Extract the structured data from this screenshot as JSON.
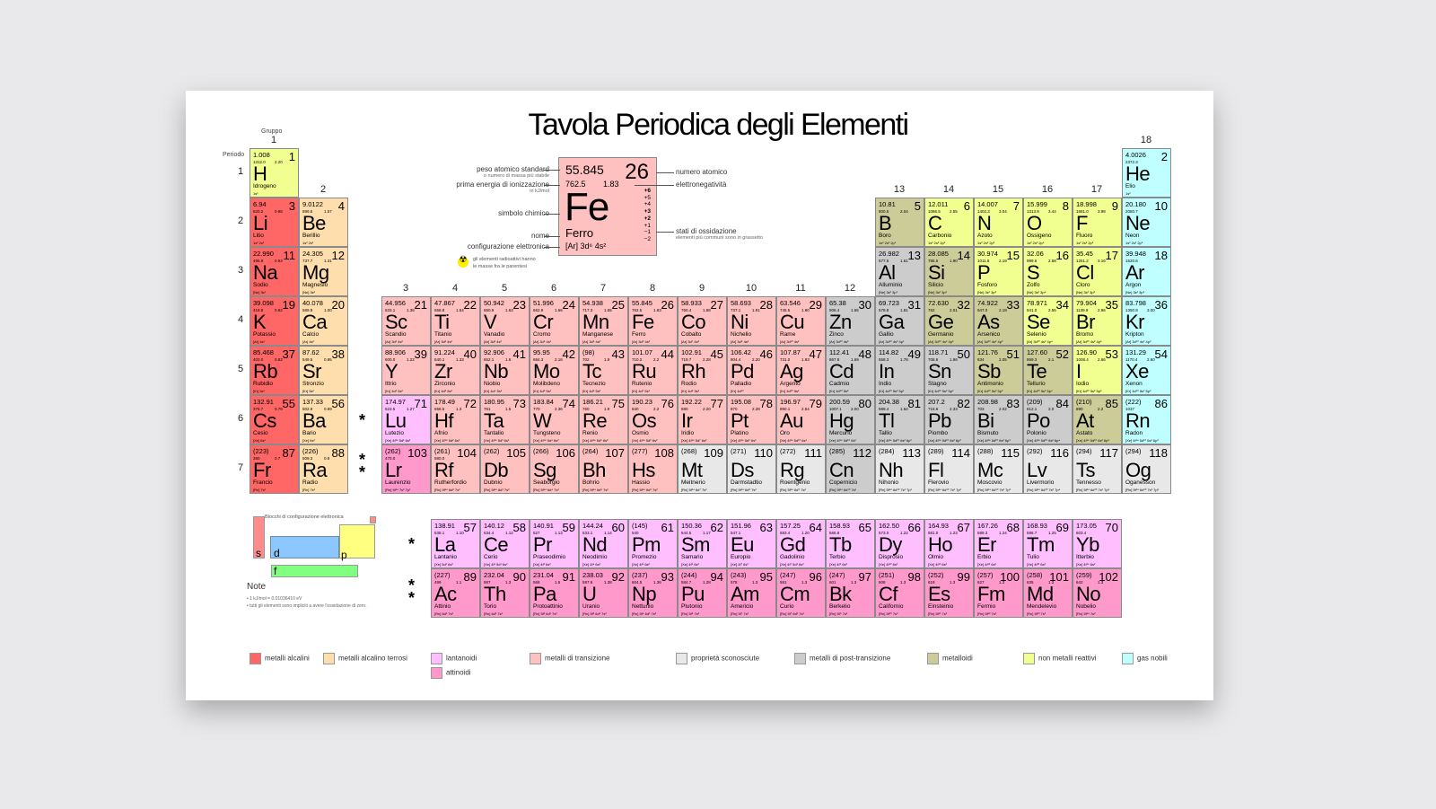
{
  "title": "Tavola Periodica degli Elementi",
  "axis": {
    "group_label": "Gruppo",
    "period_label": "Periodo",
    "groups": [
      "1",
      "2",
      "3",
      "4",
      "5",
      "6",
      "7",
      "8",
      "9",
      "10",
      "11",
      "12",
      "13",
      "14",
      "15",
      "16",
      "17",
      "18"
    ],
    "periods": [
      "1",
      "2",
      "3",
      "4",
      "5",
      "6",
      "7"
    ]
  },
  "key": {
    "mass": "55.845",
    "number": "26",
    "ie": "762.5",
    "en": "1.83",
    "symbol": "Fe",
    "name": "Ferro",
    "config": "[Ar] 3d⁶ 4s²",
    "oxidation": [
      "+6",
      "+5",
      "+4",
      "+3",
      "+2",
      "+1",
      "−1",
      "−2"
    ],
    "labels": {
      "mass": "peso atomico standard",
      "mass_sub": "o numero di massa più stabile",
      "ie": "prima energia di ionizzazione",
      "ie_sub": "in kJ/mol",
      "symbol": "simbolo chimico",
      "name": "nome",
      "config": "configurazione elettronica",
      "number": "numero atomico",
      "en": "elettronegatività",
      "ox": "stati di ossidazione",
      "ox_sub": "elementi più communi sono in grassetto"
    },
    "radio_note_1": "gli elementi radioattivi hanno",
    "radio_note_2": "le masse fra le parentesi"
  },
  "blocks": {
    "title": "Blocchi di configurazione elettronica",
    "s": "s",
    "d": "d",
    "p": "p",
    "f": "f",
    "colors": {
      "s": "#ff8c8c",
      "d": "#8cc8ff",
      "p": "#ffff80",
      "f": "#80ff80"
    }
  },
  "notes": {
    "title": "Note",
    "items": [
      "• 1 kJ/mol = 0.01036410 eV",
      "• tutti gli elementi sono impliciti a avere l'ossidazione di zero."
    ]
  },
  "stars": {
    "one": "*",
    "two": "* *"
  },
  "categories": {
    "alk": {
      "label": "metalli alcalini",
      "color": "#ff6666"
    },
    "ae": {
      "label": "metalli alcalino terrosi",
      "color": "#ffdead"
    },
    "lan": {
      "label": "lantanoidi",
      "color": "#ffbfff"
    },
    "act": {
      "label": "attinoidi",
      "color": "#ff99cc"
    },
    "tm": {
      "label": "metalli di transizione",
      "color": "#ffc0c0"
    },
    "unk": {
      "label": "proprietà sconosciute",
      "color": "#e8e8e8"
    },
    "pt": {
      "label": "metalli di post-transizione",
      "color": "#cccccc"
    },
    "met": {
      "label": "metalloidi",
      "color": "#cccc99"
    },
    "nm": {
      "label": "non metalli reattivi",
      "color": "#f0ff8f"
    },
    "ng": {
      "label": "gas nobili",
      "color": "#c0ffff"
    }
  },
  "elements": [
    [
      1,
      "H",
      "Idrogeno",
      "1.008",
      "1312.0",
      "2.20",
      "1s¹",
      "nm"
    ],
    [
      2,
      "He",
      "Elio",
      "4.0026",
      "2372.3",
      "",
      "1s²",
      "ng"
    ],
    [
      3,
      "Li",
      "Litio",
      "6.94",
      "520.2",
      "0.98",
      "1s² 2s¹",
      "alk"
    ],
    [
      4,
      "Be",
      "Berillio",
      "9.0122",
      "899.5",
      "1.57",
      "1s² 2s²",
      "ae"
    ],
    [
      5,
      "B",
      "Boro",
      "10.81",
      "800.6",
      "2.04",
      "1s² 2s² 2p¹",
      "met"
    ],
    [
      6,
      "C",
      "Carbonio",
      "12.011",
      "1086.5",
      "2.55",
      "1s² 2s² 2p²",
      "nm"
    ],
    [
      7,
      "N",
      "Azoto",
      "14.007",
      "1402.3",
      "3.04",
      "1s² 2s² 2p³",
      "nm"
    ],
    [
      8,
      "O",
      "Ossigeno",
      "15.999",
      "1313.9",
      "3.44",
      "1s² 2s² 2p⁴",
      "nm"
    ],
    [
      9,
      "F",
      "Fluoro",
      "18.998",
      "1681.0",
      "3.98",
      "1s² 2s² 2p⁵",
      "nm"
    ],
    [
      10,
      "Ne",
      "Neon",
      "20.180",
      "2080.7",
      "",
      "1s² 2s² 2p⁶",
      "ng"
    ],
    [
      11,
      "Na",
      "Sodio",
      "22.990",
      "495.8",
      "0.93",
      "[Ne] 3s¹",
      "alk"
    ],
    [
      12,
      "Mg",
      "Magnesio",
      "24.305",
      "737.7",
      "1.31",
      "[Ne] 3s²",
      "ae"
    ],
    [
      13,
      "Al",
      "Alluminio",
      "26.982",
      "577.5",
      "1.61",
      "[Ne] 3s² 3p¹",
      "pt"
    ],
    [
      14,
      "Si",
      "Silicio",
      "28.085",
      "786.5",
      "1.90",
      "[Ne] 3s² 3p²",
      "met"
    ],
    [
      15,
      "P",
      "Fosforo",
      "30.974",
      "1011.8",
      "2.19",
      "[Ne] 3s² 3p³",
      "nm"
    ],
    [
      16,
      "S",
      "Zolfo",
      "32.06",
      "999.6",
      "2.58",
      "[Ne] 3s² 3p⁴",
      "nm"
    ],
    [
      17,
      "Cl",
      "Cloro",
      "35.45",
      "1251.2",
      "3.16",
      "[Ne] 3s² 3p⁵",
      "nm"
    ],
    [
      18,
      "Ar",
      "Argon",
      "39.948",
      "1520.6",
      "",
      "[Ne] 3s² 3p⁶",
      "ng"
    ],
    [
      19,
      "K",
      "Potassio",
      "39.098",
      "418.8",
      "0.82",
      "[Ar] 4s¹",
      "alk"
    ],
    [
      20,
      "Ca",
      "Calcio",
      "40.078",
      "589.8",
      "1.00",
      "[Ar] 4s²",
      "ae"
    ],
    [
      21,
      "Sc",
      "Scandio",
      "44.956",
      "633.1",
      "1.36",
      "[Ar] 3d¹ 4s²",
      "tm"
    ],
    [
      22,
      "Ti",
      "Titanio",
      "47.867",
      "658.8",
      "1.54",
      "[Ar] 3d² 4s²",
      "tm"
    ],
    [
      23,
      "V",
      "Vanadio",
      "50.942",
      "650.9",
      "1.63",
      "[Ar] 3d³ 4s²",
      "tm"
    ],
    [
      24,
      "Cr",
      "Cromo",
      "51.996",
      "652.9",
      "1.66",
      "[Ar] 3d⁵ 4s¹",
      "tm"
    ],
    [
      25,
      "Mn",
      "Manganese",
      "54.938",
      "717.3",
      "1.55",
      "[Ar] 3d⁵ 4s²",
      "tm"
    ],
    [
      26,
      "Fe",
      "Ferro",
      "55.845",
      "762.5",
      "1.83",
      "[Ar] 3d⁶ 4s²",
      "tm"
    ],
    [
      27,
      "Co",
      "Cobalto",
      "58.933",
      "760.4",
      "1.88",
      "[Ar] 3d⁷ 4s²",
      "tm"
    ],
    [
      28,
      "Ni",
      "Nichelio",
      "58.693",
      "737.1",
      "1.91",
      "[Ar] 3d⁸ 4s²",
      "tm"
    ],
    [
      29,
      "Cu",
      "Rame",
      "63.546",
      "745.5",
      "1.90",
      "[Ar] 3d¹⁰ 4s¹",
      "tm"
    ],
    [
      30,
      "Zn",
      "Zinco",
      "65.38",
      "906.4",
      "1.65",
      "[Ar] 3d¹⁰ 4s²",
      "pt"
    ],
    [
      31,
      "Ga",
      "Gallio",
      "69.723",
      "578.8",
      "1.81",
      "[Ar] 3d¹⁰ 4s² 4p¹",
      "pt"
    ],
    [
      32,
      "Ge",
      "Germanio",
      "72.630",
      "762",
      "2.01",
      "[Ar] 3d¹⁰ 4s² 4p²",
      "met"
    ],
    [
      33,
      "As",
      "Arsenico",
      "74.922",
      "947.0",
      "2.18",
      "[Ar] 3d¹⁰ 4s² 4p³",
      "met"
    ],
    [
      34,
      "Se",
      "Selenio",
      "78.971",
      "941.0",
      "2.55",
      "[Ar] 3d¹⁰ 4s² 4p⁴",
      "nm"
    ],
    [
      35,
      "Br",
      "Bromo",
      "79.904",
      "1139.9",
      "2.96",
      "[Ar] 3d¹⁰ 4s² 4p⁵",
      "nm"
    ],
    [
      36,
      "Kr",
      "Kripton",
      "83.798",
      "1350.8",
      "3.00",
      "[Ar] 3d¹⁰ 4s² 4p⁶",
      "ng"
    ],
    [
      37,
      "Rb",
      "Rubidio",
      "85.468",
      "403.0",
      "0.82",
      "[Kr] 5s¹",
      "alk"
    ],
    [
      38,
      "Sr",
      "Stronzio",
      "87.62",
      "549.5",
      "0.95",
      "[Kr] 5s²",
      "ae"
    ],
    [
      39,
      "Y",
      "Ittrio",
      "88.906",
      "600.0",
      "1.22",
      "[Kr] 4d¹ 5s²",
      "tm"
    ],
    [
      40,
      "Zr",
      "Zirconio",
      "91.224",
      "640.1",
      "1.33",
      "[Kr] 4d² 5s²",
      "tm"
    ],
    [
      41,
      "Nb",
      "Niobio",
      "92.906",
      "652.1",
      "1.6",
      "[Kr] 4d⁴ 5s¹",
      "tm"
    ],
    [
      42,
      "Mo",
      "Molibdeno",
      "95.95",
      "684.3",
      "2.16",
      "[Kr] 4d⁵ 5s¹",
      "tm"
    ],
    [
      43,
      "Tc",
      "Tecnezio",
      "(98)",
      "702",
      "1.9",
      "[Kr] 4d⁵ 5s²",
      "tm"
    ],
    [
      44,
      "Ru",
      "Rutenio",
      "101.07",
      "710.2",
      "2.2",
      "[Kr] 4d⁷ 5s¹",
      "tm"
    ],
    [
      45,
      "Rh",
      "Rodio",
      "102.91",
      "719.7",
      "2.28",
      "[Kr] 4d⁸ 5s¹",
      "tm"
    ],
    [
      46,
      "Pd",
      "Palladio",
      "106.42",
      "804.4",
      "2.20",
      "[Kr] 4d¹⁰",
      "tm"
    ],
    [
      47,
      "Ag",
      "Argento",
      "107.87",
      "731.0",
      "1.93",
      "[Kr] 4d¹⁰ 5s¹",
      "tm"
    ],
    [
      48,
      "Cd",
      "Cadmio",
      "112.41",
      "867.8",
      "1.69",
      "[Kr] 4d¹⁰ 5s²",
      "pt"
    ],
    [
      49,
      "In",
      "Indio",
      "114.82",
      "558.3",
      "1.78",
      "[Kr] 4d¹⁰ 5s² 5p¹",
      "pt"
    ],
    [
      50,
      "Sn",
      "Stagno",
      "118.71",
      "708.6",
      "1.96",
      "[Kr] 4d¹⁰ 5s² 5p²",
      "pt"
    ],
    [
      51,
      "Sb",
      "Antimonio",
      "121.76",
      "834",
      "2.05",
      "[Kr] 4d¹⁰ 5s² 5p³",
      "met"
    ],
    [
      52,
      "Te",
      "Tellurio",
      "127.60",
      "869.3",
      "2.1",
      "[Kr] 4d¹⁰ 5s² 5p⁴",
      "met"
    ],
    [
      53,
      "I",
      "Iodio",
      "126.90",
      "1008.4",
      "2.66",
      "[Kr] 4d¹⁰ 5s² 5p⁵",
      "nm"
    ],
    [
      54,
      "Xe",
      "Xenon",
      "131.29",
      "1170.4",
      "2.60",
      "[Kr] 4d¹⁰ 5s² 5p⁶",
      "ng"
    ],
    [
      55,
      "Cs",
      "Cesio",
      "132.91",
      "375.7",
      "0.79",
      "[Xe] 6s¹",
      "alk"
    ],
    [
      56,
      "Ba",
      "Bario",
      "137.33",
      "502.9",
      "0.89",
      "[Xe] 6s²",
      "ae"
    ],
    [
      57,
      "La",
      "Lantanio",
      "138.91",
      "538.1",
      "1.10",
      "[Xe] 5d¹ 6s²",
      "lan"
    ],
    [
      58,
      "Ce",
      "Cerio",
      "140.12",
      "534.4",
      "1.12",
      "[Xe] 4f¹ 5d¹ 6s²",
      "lan"
    ],
    [
      59,
      "Pr",
      "Praseodimio",
      "140.91",
      "527",
      "1.13",
      "[Xe] 4f³ 6s²",
      "lan"
    ],
    [
      60,
      "Nd",
      "Neodimio",
      "144.24",
      "533.1",
      "1.14",
      "[Xe] 4f⁴ 6s²",
      "lan"
    ],
    [
      61,
      "Pm",
      "Promezio",
      "(145)",
      "540",
      "",
      "[Xe] 4f⁵ 6s²",
      "lan"
    ],
    [
      62,
      "Sm",
      "Samario",
      "150.36",
      "544.5",
      "1.17",
      "[Xe] 4f⁶ 6s²",
      "lan"
    ],
    [
      63,
      "Eu",
      "Europio",
      "151.96",
      "547.1",
      "",
      "[Xe] 4f⁷ 6s²",
      "lan"
    ],
    [
      64,
      "Gd",
      "Gadolinio",
      "157.25",
      "593.4",
      "1.20",
      "[Xe] 4f⁷ 5d¹ 6s²",
      "lan"
    ],
    [
      65,
      "Tb",
      "Terbio",
      "158.93",
      "565.8",
      "",
      "[Xe] 4f⁹ 6s²",
      "lan"
    ],
    [
      66,
      "Dy",
      "Disprosio",
      "162.50",
      "573.0",
      "1.22",
      "[Xe] 4f¹⁰ 6s²",
      "lan"
    ],
    [
      67,
      "Ho",
      "Olmio",
      "164.93",
      "581.0",
      "1.23",
      "[Xe] 4f¹¹ 6s²",
      "lan"
    ],
    [
      68,
      "Er",
      "Erbio",
      "167.26",
      "589.3",
      "1.24",
      "[Xe] 4f¹² 6s²",
      "lan"
    ],
    [
      69,
      "Tm",
      "Tulio",
      "168.93",
      "596.7",
      "1.25",
      "[Xe] 4f¹³ 6s²",
      "lan"
    ],
    [
      70,
      "Yb",
      "Itterbio",
      "173.05",
      "603.4",
      "",
      "[Xe] 4f¹⁴ 6s²",
      "lan"
    ],
    [
      71,
      "Lu",
      "Lutezio",
      "174.97",
      "523.5",
      "1.27",
      "[Xe] 4f¹⁴ 5d¹ 6s²",
      "lan"
    ],
    [
      72,
      "Hf",
      "Afnio",
      "178.49",
      "658.5",
      "1.3",
      "[Xe] 4f¹⁴ 5d² 6s²",
      "tm"
    ],
    [
      73,
      "Ta",
      "Tantalio",
      "180.95",
      "761",
      "1.5",
      "[Xe] 4f¹⁴ 5d³ 6s²",
      "tm"
    ],
    [
      74,
      "W",
      "Tungsteno",
      "183.84",
      "770",
      "2.36",
      "[Xe] 4f¹⁴ 5d⁴ 6s²",
      "tm"
    ],
    [
      75,
      "Re",
      "Renio",
      "186.21",
      "760",
      "1.9",
      "[Xe] 4f¹⁴ 5d⁵ 6s²",
      "tm"
    ],
    [
      76,
      "Os",
      "Osmio",
      "190.23",
      "840",
      "2.2",
      "[Xe] 4f¹⁴ 5d⁶ 6s²",
      "tm"
    ],
    [
      77,
      "Ir",
      "Iridio",
      "192.22",
      "880",
      "2.20",
      "[Xe] 4f¹⁴ 5d⁷ 6s²",
      "tm"
    ],
    [
      78,
      "Pt",
      "Platino",
      "195.08",
      "870",
      "2.28",
      "[Xe] 4f¹⁴ 5d⁹ 6s¹",
      "tm"
    ],
    [
      79,
      "Au",
      "Oro",
      "196.97",
      "890.1",
      "2.54",
      "[Xe] 4f¹⁴ 5d¹⁰ 6s¹",
      "tm"
    ],
    [
      80,
      "Hg",
      "Mercurio",
      "200.59",
      "1007.1",
      "2.00",
      "[Xe] 4f¹⁴ 5d¹⁰ 6s²",
      "pt"
    ],
    [
      81,
      "Tl",
      "Tallio",
      "204.38",
      "589.4",
      "1.62",
      "[Xe] 4f¹⁴ 5d¹⁰ 6s² 6p¹",
      "pt"
    ],
    [
      82,
      "Pb",
      "Piombo",
      "207.2",
      "715.6",
      "2.33",
      "[Xe] 4f¹⁴ 5d¹⁰ 6s² 6p²",
      "pt"
    ],
    [
      83,
      "Bi",
      "Bismuto",
      "208.98",
      "703",
      "2.02",
      "[Xe] 4f¹⁴ 5d¹⁰ 6s² 6p³",
      "pt"
    ],
    [
      84,
      "Po",
      "Polonio",
      "(209)",
      "812.1",
      "2.0",
      "[Xe] 4f¹⁴ 5d¹⁰ 6s² 6p⁴",
      "pt"
    ],
    [
      85,
      "At",
      "Astato",
      "(210)",
      "890",
      "2.2",
      "[Xe] 4f¹⁴ 5d¹⁰ 6s² 6p⁵",
      "met"
    ],
    [
      86,
      "Rn",
      "Radon",
      "(222)",
      "1037",
      "",
      "[Xe] 4f¹⁴ 5d¹⁰ 6s² 6p⁶",
      "ng"
    ],
    [
      87,
      "Fr",
      "Francio",
      "(223)",
      "380",
      "0.7",
      "[Rn] 7s¹",
      "alk"
    ],
    [
      88,
      "Ra",
      "Radio",
      "(226)",
      "509.3",
      "0.9",
      "[Rn] 7s²",
      "ae"
    ],
    [
      89,
      "Ac",
      "Attinio",
      "(227)",
      "499",
      "1.1",
      "[Rn] 6d¹ 7s²",
      "act"
    ],
    [
      90,
      "Th",
      "Torio",
      "232.04",
      "587",
      "1.3",
      "[Rn] 6d² 7s²",
      "act"
    ],
    [
      91,
      "Pa",
      "Protoattinio",
      "231.04",
      "568",
      "1.5",
      "[Rn] 5f² 6d¹ 7s²",
      "act"
    ],
    [
      92,
      "U",
      "Uranio",
      "238.03",
      "597.6",
      "1.38",
      "[Rn] 5f³ 6d¹ 7s²",
      "act"
    ],
    [
      93,
      "Np",
      "Nettunio",
      "(237)",
      "604.5",
      "1.36",
      "[Rn] 5f⁴ 6d¹ 7s²",
      "act"
    ],
    [
      94,
      "Pu",
      "Plutonio",
      "(244)",
      "584.7",
      "1.28",
      "[Rn] 5f⁶ 7s²",
      "act"
    ],
    [
      95,
      "Am",
      "Americio",
      "(243)",
      "578",
      "1.3",
      "[Rn] 5f⁷ 7s²",
      "act"
    ],
    [
      96,
      "Cm",
      "Curio",
      "(247)",
      "581",
      "1.3",
      "[Rn] 5f⁷ 6d¹ 7s²",
      "act"
    ],
    [
      97,
      "Bk",
      "Berkelio",
      "(247)",
      "601",
      "1.3",
      "[Rn] 5f⁹ 7s²",
      "act"
    ],
    [
      98,
      "Cf",
      "Californio",
      "(251)",
      "608",
      "1.3",
      "[Rn] 5f¹⁰ 7s²",
      "act"
    ],
    [
      99,
      "Es",
      "Einsteinio",
      "(252)",
      "619",
      "1.3",
      "[Rn] 5f¹¹ 7s²",
      "act"
    ],
    [
      100,
      "Fm",
      "Fermio",
      "(257)",
      "627",
      "1.3",
      "[Rn] 5f¹² 7s²",
      "act"
    ],
    [
      101,
      "Md",
      "Mendelevio",
      "(258)",
      "635",
      "1.3",
      "[Rn] 5f¹³ 7s²",
      "act"
    ],
    [
      102,
      "No",
      "Nobelio",
      "(259)",
      "642",
      "1.3",
      "[Rn] 5f¹⁴ 7s²",
      "act"
    ],
    [
      103,
      "Lr",
      "Laurenzio",
      "(262)",
      "470.0",
      "",
      "[Rn] 5f¹⁴ 7s² 7p¹",
      "act"
    ],
    [
      104,
      "Rf",
      "Rutherfordio",
      "(261)",
      "580.0",
      "",
      "[Rn] 5f¹⁴ 6d² 7s²",
      "tm"
    ],
    [
      105,
      "Db",
      "Dubnio",
      "(262)",
      "",
      "",
      "[Rn] 5f¹⁴ 6d³ 7s²",
      "tm"
    ],
    [
      106,
      "Sg",
      "Seaborgio",
      "(266)",
      "",
      "",
      "[Rn] 5f¹⁴ 6d⁴ 7s²",
      "tm"
    ],
    [
      107,
      "Bh",
      "Bohrio",
      "(264)",
      "",
      "",
      "[Rn] 5f¹⁴ 6d⁵ 7s²",
      "tm"
    ],
    [
      108,
      "Hs",
      "Hassio",
      "(277)",
      "",
      "",
      "[Rn] 5f¹⁴ 6d⁶ 7s²",
      "tm"
    ],
    [
      109,
      "Mt",
      "Meitnerio",
      "(268)",
      "",
      "",
      "[Rn] 5f¹⁴ 6d⁷ 7s²",
      "unk"
    ],
    [
      110,
      "Ds",
      "Darmstadtio",
      "(271)",
      "",
      "",
      "[Rn] 5f¹⁴ 6d⁸ 7s²",
      "unk"
    ],
    [
      111,
      "Rg",
      "Roentgenio",
      "(272)",
      "",
      "",
      "[Rn] 5f¹⁴ 6d⁹ 7s²",
      "unk"
    ],
    [
      112,
      "Cn",
      "Copernicio",
      "(285)",
      "",
      "",
      "[Rn] 5f¹⁴ 6d¹⁰ 7s²",
      "pt"
    ],
    [
      113,
      "Nh",
      "Nihonio",
      "(284)",
      "",
      "",
      "[Rn] 5f¹⁴ 6d¹⁰ 7s² 7p¹",
      "unk"
    ],
    [
      114,
      "Fl",
      "Flerovio",
      "(289)",
      "",
      "",
      "[Rn] 5f¹⁴ 6d¹⁰ 7s² 7p²",
      "unk"
    ],
    [
      115,
      "Mc",
      "Moscovio",
      "(288)",
      "",
      "",
      "[Rn] 5f¹⁴ 6d¹⁰ 7s² 7p³",
      "unk"
    ],
    [
      116,
      "Lv",
      "Livermorio",
      "(292)",
      "",
      "",
      "[Rn] 5f¹⁴ 6d¹⁰ 7s² 7p⁴",
      "unk"
    ],
    [
      117,
      "Ts",
      "Tennesso",
      "(294)",
      "",
      "",
      "[Rn] 5f¹⁴ 6d¹⁰ 7s² 7p⁵",
      "unk"
    ],
    [
      118,
      "Og",
      "Oganesson",
      "(294)",
      "",
      "",
      "[Rn] 5f¹⁴ 6d¹⁰ 7s² 7p⁶",
      "unk"
    ]
  ]
}
